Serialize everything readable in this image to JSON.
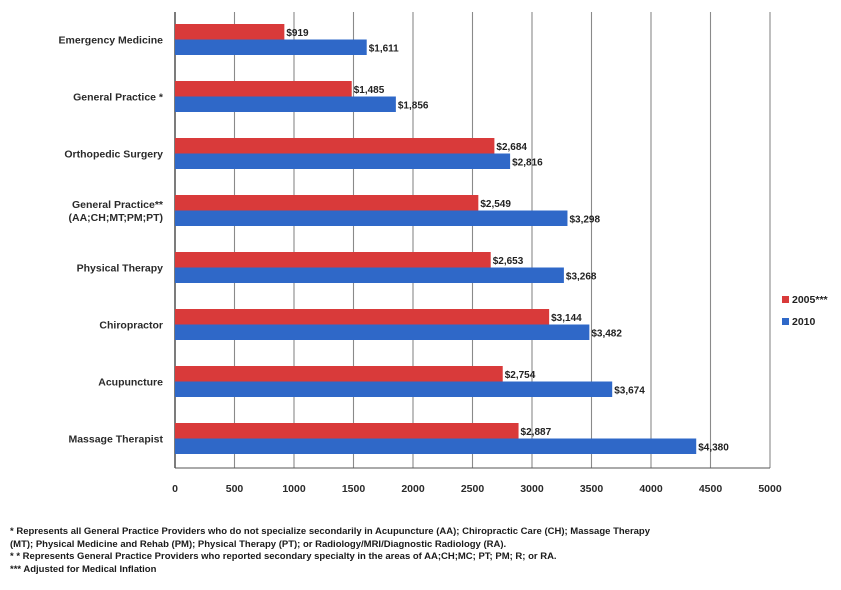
{
  "chart_data": {
    "type": "bar",
    "orientation": "horizontal",
    "title": "",
    "categories": [
      "Emergency Medicine",
      "General Practice *",
      "Orthopedic Surgery",
      "General Practice** (AA;CH;MT;PM;PT)",
      "Physical Therapy",
      "Chiropractor",
      "Acupuncture",
      "Massage Therapist"
    ],
    "category_lines": [
      [
        "Emergency Medicine"
      ],
      [
        "General Practice *"
      ],
      [
        "Orthopedic Surgery"
      ],
      [
        "General Practice**",
        "(AA;CH;MT;PM;PT)"
      ],
      [
        "Physical Therapy"
      ],
      [
        "Chiropractor"
      ],
      [
        "Acupuncture"
      ],
      [
        "Massage Therapist"
      ]
    ],
    "series": [
      {
        "name": "2005***",
        "color": "#d93a3a",
        "values": [
          919,
          1485,
          2684,
          2549,
          2653,
          3144,
          2754,
          2887
        ],
        "labels": [
          "$919",
          "$1,485",
          "$2,684",
          "$2,549",
          "$2,653",
          "$3,144",
          "$2,754",
          "$2,887"
        ]
      },
      {
        "name": "2010",
        "color": "#2f68c8",
        "values": [
          1611,
          1856,
          2816,
          3298,
          3268,
          3482,
          3674,
          4380
        ],
        "labels": [
          "$1,611",
          "$1,856",
          "$2,816",
          "$3,298",
          "$3,268",
          "$3,482",
          "$3,674",
          "$4,380"
        ]
      }
    ],
    "xlim": [
      0,
      5000
    ],
    "xticks": [
      0,
      500,
      1000,
      1500,
      2000,
      2500,
      3000,
      3500,
      4000,
      4500,
      5000
    ],
    "xlabel": "",
    "ylabel": "",
    "grid": "vertical",
    "legend": "right"
  },
  "footnotes": [
    "* Represents all General Practice Providers who do not specialize secondarily in Acupuncture (AA); Chiropractic Care (CH); Massage Therapy",
    "(MT); Physical Medicine and Rehab (PM); Physical Therapy (PT); or Radiology/MRI/Diagnostic Radiology (RA).",
    "* * Represents General Practice Providers who reported secondary specialty in the areas of AA;CH;MC; PT; PM; R; or RA.",
    "*** Adjusted for Medical Inflation"
  ]
}
